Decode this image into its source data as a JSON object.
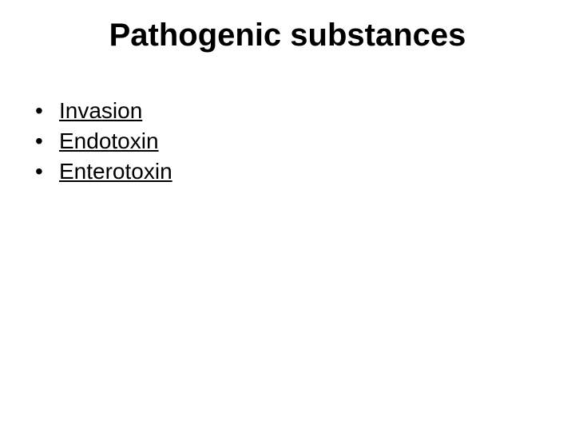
{
  "slide": {
    "title": "Pathogenic substances",
    "title_fontsize": 40,
    "title_fontweight": "bold",
    "title_color": "#000000",
    "background_color": "#ffffff",
    "bullets": [
      {
        "text": "Invasion",
        "underline": true
      },
      {
        "text": "Endotoxin",
        "underline": true
      },
      {
        "text": "Enterotoxin",
        "underline": true
      }
    ],
    "bullet_marker": "•",
    "bullet_fontsize": 28,
    "bullet_color": "#000000"
  }
}
